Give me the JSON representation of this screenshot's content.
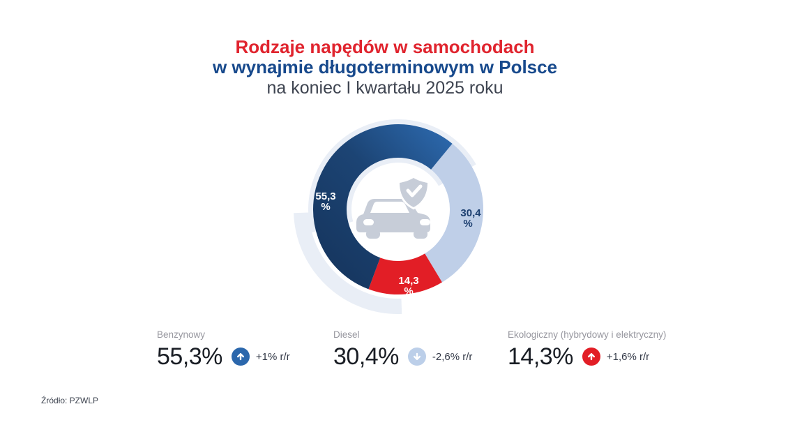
{
  "theme": {
    "bg": "#ffffff",
    "title-red": "#e0242e",
    "title-blue": "#17498c",
    "text-dark": "#3e4450",
    "text-gray": "#97979f",
    "value-dark": "#191d24",
    "change-dark": "#333947"
  },
  "header": {
    "title_line1": "Rodzaje napędów w samochodach",
    "title_line2": "w wynajmie długoterminowym w Polsce",
    "title_line3": "na koniec I kwartału 2025 roku"
  },
  "chart_data": {
    "type": "pie",
    "donut": true,
    "title": "Rodzaje napędów w samochodach w wynajmie długoterminowym w Polsce na koniec I kwartału 2025 roku",
    "unit": "%",
    "categories": [
      "Benzynowy",
      "Diesel",
      "Ekologiczny (hybrydowy i elektryczny)"
    ],
    "values": [
      55.3,
      30.4,
      14.3
    ],
    "value_labels": [
      "55,3",
      "30,4",
      "14,3"
    ],
    "yoy_changes": [
      "+1% r/r",
      "-2,6% r/r",
      "+1,6% r/r"
    ],
    "legend_position": "bottom",
    "colors": {
      "benzynowy_dark": "#16365f",
      "benzynowy_mid": "#1c4474",
      "benzynowy_light": "#2f6fb7",
      "diesel": "#bfcfe8",
      "ekologiczny": "#e21e26",
      "halo": "#e9eef6",
      "label_light": "#ffffff",
      "label_navy": "#1c3f70",
      "center_icon": "#c7cdd8"
    },
    "layout": {
      "start_angle_deg": 39.5,
      "draw_order": [
        1,
        2,
        0
      ],
      "radius": 98,
      "thickness": 48,
      "halo_arcs": [
        [
          255,
          420,
          98,
          62
        ],
        [
          178,
          268,
          139,
          22
        ]
      ]
    }
  },
  "donut_labels": {
    "benzynowy": {
      "num": "55,3",
      "pct": "%"
    },
    "diesel": {
      "num": "30,4",
      "pct": "%"
    },
    "ekologiczny": {
      "num": "14,3",
      "pct": "%"
    }
  },
  "legend": {
    "items": [
      {
        "label": "Benzynowy",
        "value": "55,3%",
        "change": "+1% r/r",
        "trend": "up",
        "badge_color": "#2b67ac"
      },
      {
        "label": "Diesel",
        "value": "30,4%",
        "change": "-2,6% r/r",
        "trend": "down",
        "badge_color": "#bccfe9"
      },
      {
        "label": "Ekologiczny (hybrydowy i elektryczny)",
        "value": "14,3%",
        "change": "+1,6% r/r",
        "trend": "up",
        "badge_color": "#e21e26"
      }
    ]
  },
  "source": "Źródło: PZWLP"
}
